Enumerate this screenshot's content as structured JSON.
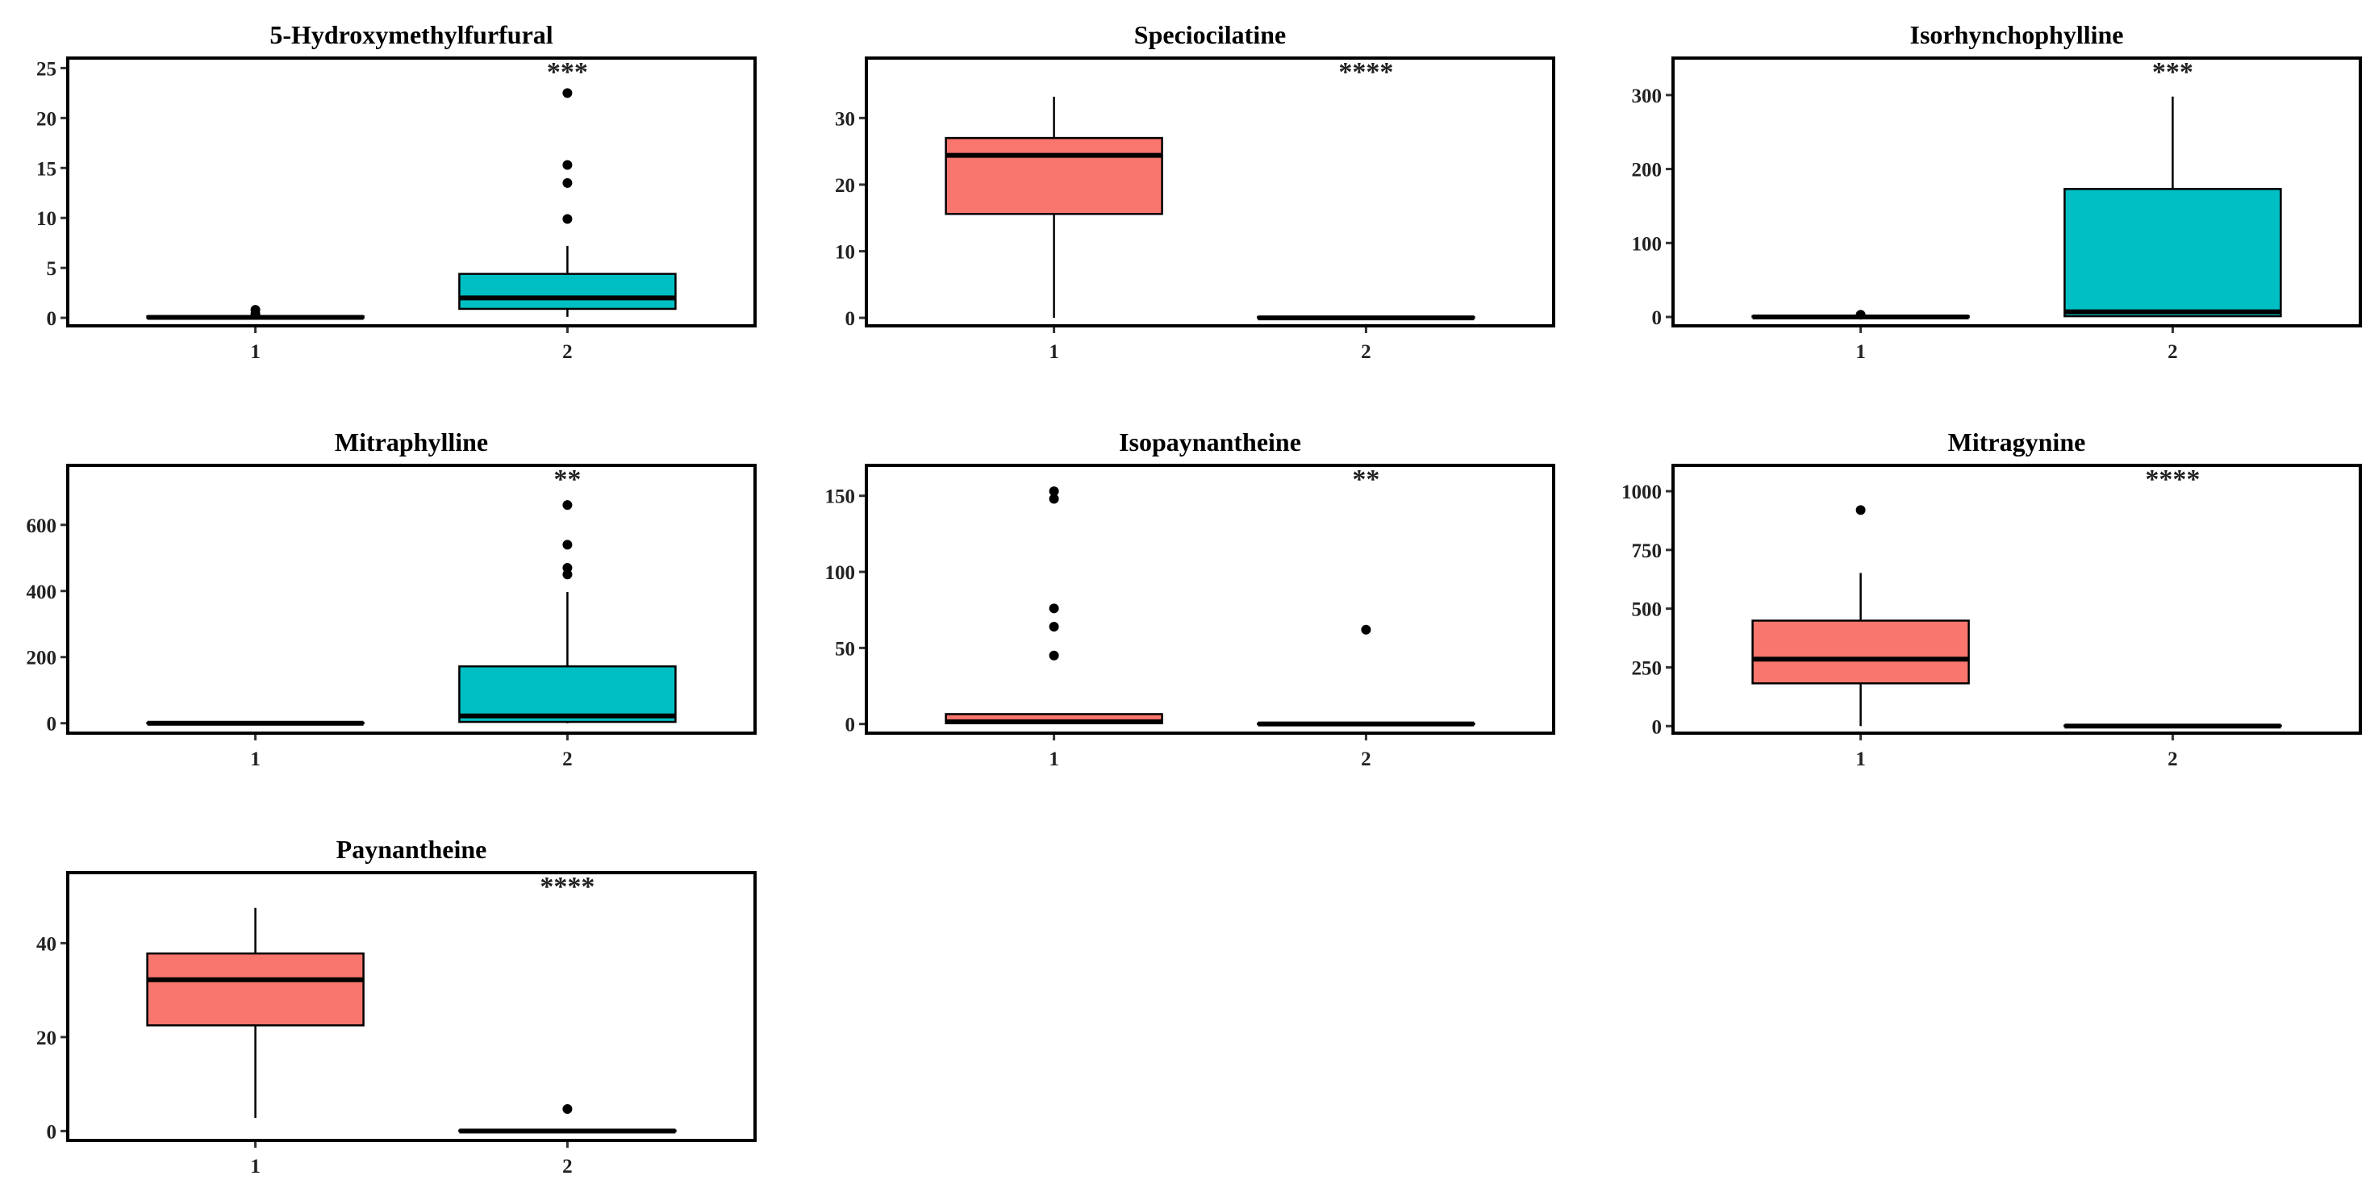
{
  "figure": {
    "colors": {
      "group1": "#F8766D",
      "group2": "#00BFC4",
      "axis": "#000000"
    },
    "note": ""
  },
  "chart_data": [
    {
      "type": "boxplot",
      "title": "5-Hydroxymethylfurfural",
      "categories": [
        "1",
        "2"
      ],
      "yticks": [
        0,
        5,
        10,
        15,
        20,
        25
      ],
      "ylim": [
        -0.8,
        26
      ],
      "significance": "***",
      "boxes": [
        {
          "category": "1",
          "q1": 0,
          "median": 0.05,
          "q3": 0.15,
          "lower": 0,
          "upper": 0.2,
          "outliers": [
            0.4,
            0.8
          ]
        },
        {
          "category": "2",
          "q1": 0.9,
          "median": 2.0,
          "q3": 4.4,
          "lower": 0.1,
          "upper": 7.2,
          "outliers": [
            9.9,
            13.5,
            15.3,
            22.5
          ]
        }
      ]
    },
    {
      "type": "boxplot",
      "title": "Speciocilatine",
      "categories": [
        "1",
        "2"
      ],
      "yticks": [
        0,
        10,
        20,
        30
      ],
      "ylim": [
        -1.2,
        39
      ],
      "significance": "****",
      "boxes": [
        {
          "category": "1",
          "q1": 15.6,
          "median": 24.4,
          "q3": 27.0,
          "lower": 0,
          "upper": 33.2,
          "outliers": []
        },
        {
          "category": "2",
          "q1": 0,
          "median": 0,
          "q3": 0.1,
          "lower": 0,
          "upper": 0.1,
          "outliers": []
        }
      ]
    },
    {
      "type": "boxplot",
      "title": "Isorhynchophylline",
      "categories": [
        "1",
        "2"
      ],
      "yticks": [
        0,
        100,
        200,
        300
      ],
      "ylim": [
        -12,
        350
      ],
      "significance": "***",
      "boxes": [
        {
          "category": "1",
          "q1": 0,
          "median": 0,
          "q3": 1,
          "lower": 0,
          "upper": 1,
          "outliers": [
            3
          ]
        },
        {
          "category": "2",
          "q1": 1,
          "median": 7,
          "q3": 173,
          "lower": 0,
          "upper": 298,
          "outliers": []
        }
      ]
    },
    {
      "type": "boxplot",
      "title": "Mitraphylline",
      "categories": [
        "1",
        "2"
      ],
      "yticks": [
        0,
        200,
        400,
        600
      ],
      "ylim": [
        -30,
        780
      ],
      "significance": "**",
      "boxes": [
        {
          "category": "1",
          "q1": 0,
          "median": 0,
          "q3": 1,
          "lower": 0,
          "upper": 1,
          "outliers": []
        },
        {
          "category": "2",
          "q1": 4,
          "median": 22,
          "q3": 172,
          "lower": 0,
          "upper": 397,
          "outliers": [
            450,
            470,
            540,
            660
          ]
        }
      ]
    },
    {
      "type": "boxplot",
      "title": "Isopaynantheine",
      "categories": [
        "1",
        "2"
      ],
      "yticks": [
        0,
        50,
        100,
        150
      ],
      "ylim": [
        -6,
        170
      ],
      "significance": "**",
      "boxes": [
        {
          "category": "1",
          "q1": 0.5,
          "median": 1.5,
          "q3": 6.5,
          "lower": 0,
          "upper": 7,
          "outliers": [
            45,
            64,
            76,
            148,
            153
          ]
        },
        {
          "category": "2",
          "q1": 0,
          "median": 0,
          "q3": 0.3,
          "lower": 0,
          "upper": 0.3,
          "outliers": [
            62
          ]
        }
      ]
    },
    {
      "type": "boxplot",
      "title": "Mitragynine",
      "categories": [
        "1",
        "2"
      ],
      "yticks": [
        0,
        250,
        500,
        750,
        1000
      ],
      "ylim": [
        -30,
        1110
      ],
      "significance": "****",
      "boxes": [
        {
          "category": "1",
          "q1": 182,
          "median": 285,
          "q3": 449,
          "lower": 0,
          "upper": 652,
          "outliers": [
            920
          ]
        },
        {
          "category": "2",
          "q1": 0,
          "median": 0,
          "q3": 2,
          "lower": 0,
          "upper": 2,
          "outliers": []
        }
      ]
    },
    {
      "type": "boxplot",
      "title": "Paynantheine",
      "categories": [
        "1",
        "2"
      ],
      "yticks": [
        0,
        20,
        40
      ],
      "ylim": [
        -2,
        55
      ],
      "significance": "****",
      "boxes": [
        {
          "category": "1",
          "q1": 22.5,
          "median": 32.2,
          "q3": 37.8,
          "lower": 2.8,
          "upper": 47.5,
          "outliers": []
        },
        {
          "category": "2",
          "q1": 0,
          "median": 0,
          "q3": 0.1,
          "lower": 0,
          "upper": 0.1,
          "outliers": [
            4.7
          ]
        }
      ]
    }
  ]
}
